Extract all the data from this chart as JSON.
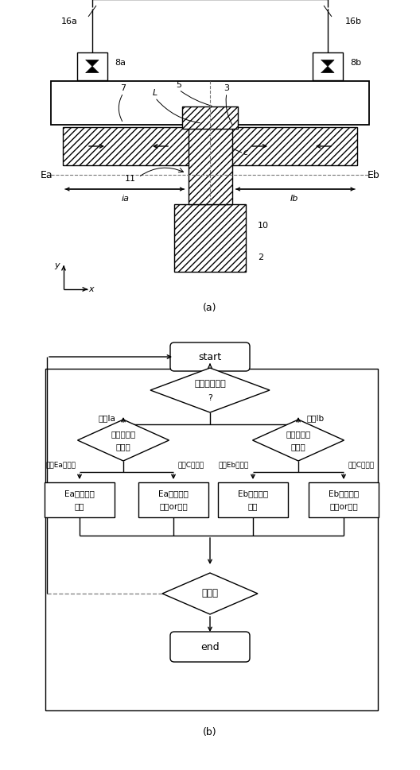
{
  "bg_color": "#ffffff",
  "fig_width": 5.28,
  "fig_height": 9.69,
  "dpi": 100,
  "label_a": "(a)",
  "label_b": "(b)",
  "note_16": "16",
  "note_16a": "16a",
  "note_16b": "16b",
  "note_8a": "8a",
  "note_8b": "8b",
  "note_7": "7",
  "note_L": "L",
  "note_5": "5",
  "note_3": "3",
  "note_c": "c",
  "note_11": "11",
  "note_Ea": "Ea",
  "note_Eb": "Eb",
  "note_Ia": "ia",
  "note_Ib": "Ib",
  "note_10": "10",
  "note_2": "2",
  "flow_start": "start",
  "flow_end": "end",
  "flow_diamond1_l1": "可動子の位置",
  "flow_diamond1_l2": "?",
  "flow_diamond2a_l1": "可動子移動",
  "flow_diamond2a_l2": "方向？",
  "flow_diamond2b_l1": "可動子移動",
  "flow_diamond2b_l2": "方向？",
  "flow_diamond3": "終了？",
  "flow_label_ia": "領域Ia",
  "flow_label_ib": "領域Ib",
  "flow_label_ea_move": "端部Eaへ移動",
  "flow_label_ca_move": "中心Cへ移動",
  "flow_label_eb_move": "端部Ebへ移動",
  "flow_label_cb_move": "中心Cへ移動",
  "flow_box1_l1": "Ea側排気量",
  "flow_box1_l2": "増大",
  "flow_box2_l1": "Ea側排気量",
  "flow_box2_l2": "不変or減少",
  "flow_box3_l1": "Eb側排気量",
  "flow_box3_l2": "増大",
  "flow_box4_l1": "Eb側排気量",
  "flow_box4_l2": "不変or減少"
}
